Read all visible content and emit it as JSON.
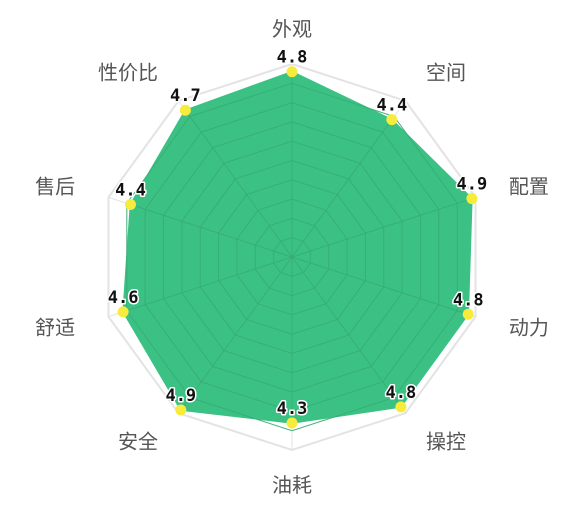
{
  "chart_data": {
    "type": "radar",
    "max": 5,
    "categories": [
      "外观",
      "空间",
      "配置",
      "动力",
      "操控",
      "油耗",
      "安全",
      "舒适",
      "售后",
      "性价比"
    ],
    "values": [
      4.8,
      4.4,
      4.9,
      4.8,
      4.8,
      4.3,
      4.9,
      4.6,
      4.4,
      4.7
    ],
    "value_labels": [
      "4.8",
      "4.4",
      "4.9",
      "4.8",
      "4.8",
      "4.3",
      "4.9",
      "4.6",
      "4.4",
      "4.7"
    ],
    "grid": true,
    "colors": {
      "fill": "#3cc184",
      "dot": "#f7ec3c",
      "outer_grid": "#e3e3e3",
      "inner_grid": "#36ad76",
      "label": "#555555",
      "value_text": "#111111"
    }
  }
}
